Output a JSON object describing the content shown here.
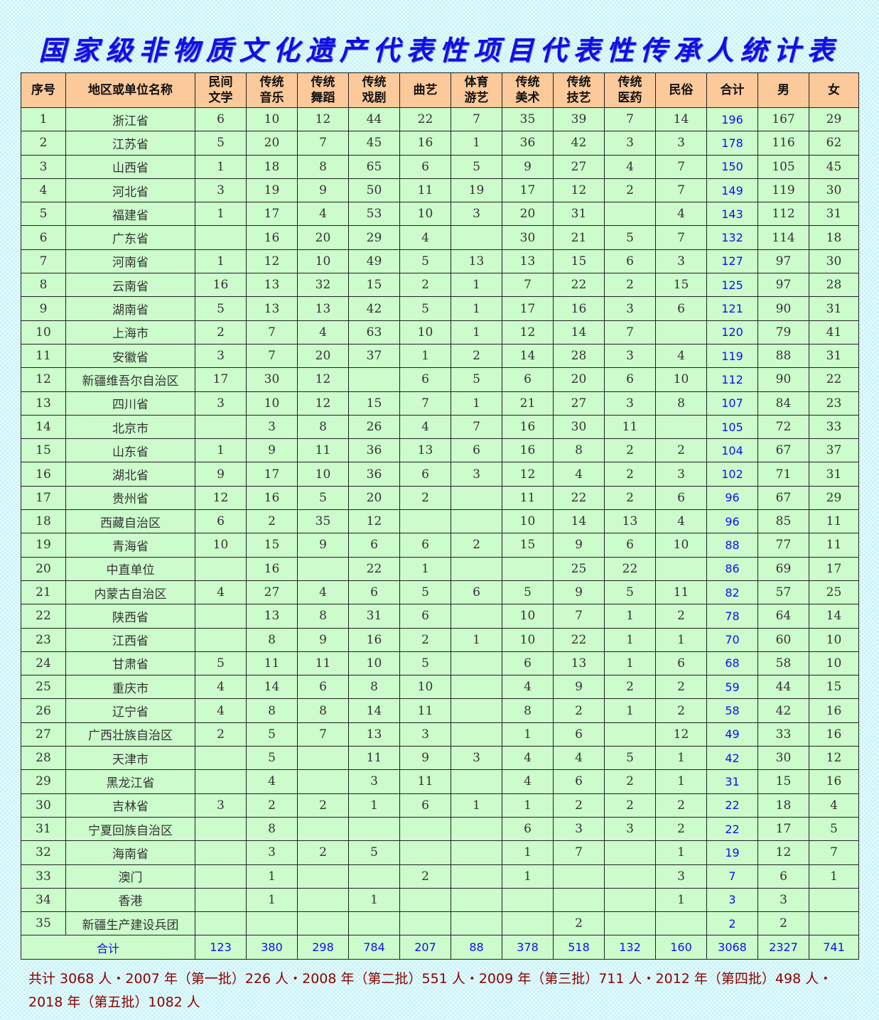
{
  "title": "国家级非物质文化遗产代表性项目代表性传承人统计表",
  "headers": [
    "序号",
    "地区或单位名称",
    "民间\n文学",
    "传统\n音乐",
    "传统\n舞蹈",
    "传统\n戏剧",
    "曲艺",
    "体育\n游艺",
    "传统\n美术",
    "传统\n技艺",
    "传统\n医药",
    "民俗",
    "合计",
    "男",
    "女"
  ],
  "rows": [
    [
      "1",
      "浙江省",
      "6",
      "10",
      "12",
      "44",
      "22",
      "7",
      "35",
      "39",
      "7",
      "14",
      "196",
      "167",
      "29"
    ],
    [
      "2",
      "江苏省",
      "5",
      "20",
      "7",
      "45",
      "16",
      "1",
      "36",
      "42",
      "3",
      "3",
      "178",
      "116",
      "62"
    ],
    [
      "3",
      "山西省",
      "1",
      "18",
      "8",
      "65",
      "6",
      "5",
      "9",
      "27",
      "4",
      "7",
      "150",
      "105",
      "45"
    ],
    [
      "4",
      "河北省",
      "3",
      "19",
      "9",
      "50",
      "11",
      "19",
      "17",
      "12",
      "2",
      "7",
      "149",
      "119",
      "30"
    ],
    [
      "5",
      "福建省",
      "1",
      "17",
      "4",
      "53",
      "10",
      "3",
      "20",
      "31",
      "",
      "4",
      "143",
      "112",
      "31"
    ],
    [
      "6",
      "广东省",
      "",
      "16",
      "20",
      "29",
      "4",
      "",
      "30",
      "21",
      "5",
      "7",
      "132",
      "114",
      "18"
    ],
    [
      "7",
      "河南省",
      "1",
      "12",
      "10",
      "49",
      "5",
      "13",
      "13",
      "15",
      "6",
      "3",
      "127",
      "97",
      "30"
    ],
    [
      "8",
      "云南省",
      "16",
      "13",
      "32",
      "15",
      "2",
      "1",
      "7",
      "22",
      "2",
      "15",
      "125",
      "97",
      "28"
    ],
    [
      "9",
      "湖南省",
      "5",
      "13",
      "13",
      "42",
      "5",
      "1",
      "17",
      "16",
      "3",
      "6",
      "121",
      "90",
      "31"
    ],
    [
      "10",
      "上海市",
      "2",
      "7",
      "4",
      "63",
      "10",
      "1",
      "12",
      "14",
      "7",
      "",
      "120",
      "79",
      "41"
    ],
    [
      "11",
      "安徽省",
      "3",
      "7",
      "20",
      "37",
      "1",
      "2",
      "14",
      "28",
      "3",
      "4",
      "119",
      "88",
      "31"
    ],
    [
      "12",
      "新疆维吾尔自治区",
      "17",
      "30",
      "12",
      "",
      "6",
      "5",
      "6",
      "20",
      "6",
      "10",
      "112",
      "90",
      "22"
    ],
    [
      "13",
      "四川省",
      "3",
      "10",
      "12",
      "15",
      "7",
      "1",
      "21",
      "27",
      "3",
      "8",
      "107",
      "84",
      "23"
    ],
    [
      "14",
      "北京市",
      "",
      "3",
      "8",
      "26",
      "4",
      "7",
      "16",
      "30",
      "11",
      "",
      "105",
      "72",
      "33"
    ],
    [
      "15",
      "山东省",
      "1",
      "9",
      "11",
      "36",
      "13",
      "6",
      "16",
      "8",
      "2",
      "2",
      "104",
      "67",
      "37"
    ],
    [
      "16",
      "湖北省",
      "9",
      "17",
      "10",
      "36",
      "6",
      "3",
      "12",
      "4",
      "2",
      "3",
      "102",
      "71",
      "31"
    ],
    [
      "17",
      "贵州省",
      "12",
      "16",
      "5",
      "20",
      "2",
      "",
      "11",
      "22",
      "2",
      "6",
      "96",
      "67",
      "29"
    ],
    [
      "18",
      "西藏自治区",
      "6",
      "2",
      "35",
      "12",
      "",
      "",
      "10",
      "14",
      "13",
      "4",
      "96",
      "85",
      "11"
    ],
    [
      "19",
      "青海省",
      "10",
      "15",
      "9",
      "6",
      "6",
      "2",
      "15",
      "9",
      "6",
      "10",
      "88",
      "77",
      "11"
    ],
    [
      "20",
      "中直单位",
      "",
      "16",
      "",
      "22",
      "1",
      "",
      "",
      "25",
      "22",
      "",
      "86",
      "69",
      "17"
    ],
    [
      "21",
      "内蒙古自治区",
      "4",
      "27",
      "4",
      "6",
      "5",
      "6",
      "5",
      "9",
      "5",
      "11",
      "82",
      "57",
      "25"
    ],
    [
      "22",
      "陕西省",
      "",
      "13",
      "8",
      "31",
      "6",
      "",
      "10",
      "7",
      "1",
      "2",
      "78",
      "64",
      "14"
    ],
    [
      "23",
      "江西省",
      "",
      "8",
      "9",
      "16",
      "2",
      "1",
      "10",
      "22",
      "1",
      "1",
      "70",
      "60",
      "10"
    ],
    [
      "24",
      "甘肃省",
      "5",
      "11",
      "11",
      "10",
      "5",
      "",
      "6",
      "13",
      "1",
      "6",
      "68",
      "58",
      "10"
    ],
    [
      "25",
      "重庆市",
      "4",
      "14",
      "6",
      "8",
      "10",
      "",
      "4",
      "9",
      "2",
      "2",
      "59",
      "44",
      "15"
    ],
    [
      "26",
      "辽宁省",
      "4",
      "8",
      "8",
      "14",
      "11",
      "",
      "8",
      "2",
      "1",
      "2",
      "58",
      "42",
      "16"
    ],
    [
      "27",
      "广西壮族自治区",
      "2",
      "5",
      "7",
      "13",
      "3",
      "",
      "1",
      "6",
      "",
      "12",
      "49",
      "33",
      "16"
    ],
    [
      "28",
      "天津市",
      "",
      "5",
      "",
      "11",
      "9",
      "3",
      "4",
      "4",
      "5",
      "1",
      "42",
      "30",
      "12"
    ],
    [
      "29",
      "黑龙江省",
      "",
      "4",
      "",
      "3",
      "11",
      "",
      "4",
      "6",
      "2",
      "1",
      "31",
      "15",
      "16"
    ],
    [
      "30",
      "吉林省",
      "3",
      "2",
      "2",
      "1",
      "6",
      "1",
      "1",
      "2",
      "2",
      "2",
      "22",
      "18",
      "4"
    ],
    [
      "31",
      "宁夏回族自治区",
      "",
      "8",
      "",
      "",
      "",
      "",
      "6",
      "3",
      "3",
      "2",
      "22",
      "17",
      "5"
    ],
    [
      "32",
      "海南省",
      "",
      "3",
      "2",
      "5",
      "",
      "",
      "1",
      "7",
      "",
      "1",
      "19",
      "12",
      "7"
    ],
    [
      "33",
      "澳门",
      "",
      "1",
      "",
      "",
      "2",
      "",
      "1",
      "",
      "",
      "3",
      "7",
      "6",
      "1"
    ],
    [
      "34",
      "香港",
      "",
      "1",
      "",
      "1",
      "",
      "",
      "",
      "",
      "",
      "1",
      "3",
      "3",
      ""
    ],
    [
      "35",
      "新疆生产建设兵团",
      "",
      "",
      "",
      "",
      "",
      "",
      "",
      "2",
      "",
      "",
      "2",
      "2",
      ""
    ]
  ],
  "total_row": [
    "合计",
    "123",
    "380",
    "298",
    "784",
    "207",
    "88",
    "378",
    "518",
    "132",
    "160",
    "3068",
    "2327",
    "741"
  ],
  "footer": "共计 3068 人・2007 年（第一批）226 人・2008 年（第二批）551 人・2009 年（第三批）711 人・2012 年（第四批）498 人・2018 年（第五批）1082 人",
  "colors": {
    "header_bg": "#fcc99a",
    "cell_bg": "#ccfbcc",
    "title": "#1010e0",
    "total_text": "#1010ee",
    "footer_text": "#8b0000"
  }
}
